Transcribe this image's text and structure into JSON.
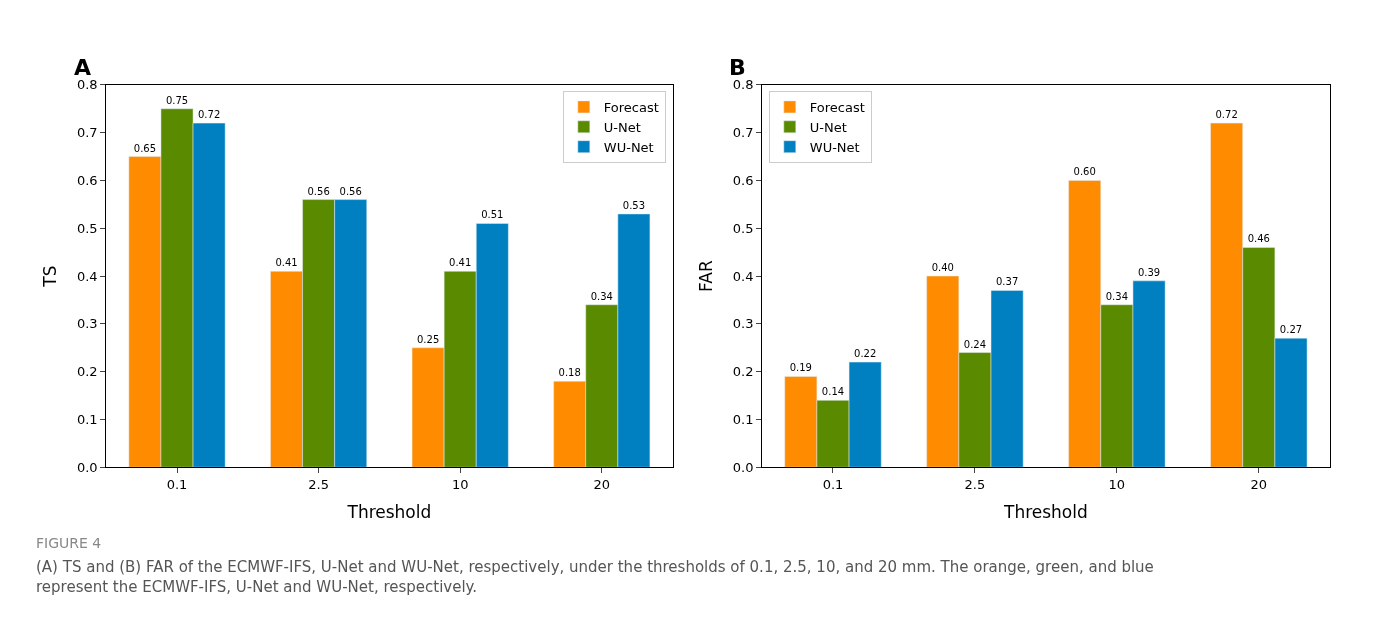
{
  "chart_data": [
    {
      "type": "bar",
      "title": "A",
      "xlabel": "Threshold",
      "ylabel": "TS",
      "categories": [
        "0.1",
        "2.5",
        "10",
        "20"
      ],
      "series": [
        {
          "name": "Forecast",
          "color": "#ff8c00",
          "values": [
            0.65,
            0.41,
            0.25,
            0.18
          ],
          "value_labels": [
            "0.65",
            "0.41",
            "0.25",
            "0.18"
          ]
        },
        {
          "name": "U-Net",
          "color": "#5a8a00",
          "values": [
            0.75,
            0.56,
            0.41,
            0.34
          ],
          "value_labels": [
            "0.75",
            "0.56",
            "0.41",
            "0.34"
          ]
        },
        {
          "name": "WU-Net",
          "color": "#0080c0",
          "values": [
            0.72,
            0.56,
            0.51,
            0.53
          ],
          "value_labels": [
            "0.72",
            "0.56",
            "0.51",
            "0.53"
          ]
        }
      ],
      "ylim": [
        0,
        0.8
      ],
      "yticks": [
        {
          "value": 0,
          "label": "0.0"
        },
        0.1,
        0.2,
        0.3,
        0.4,
        0.5,
        0.6,
        0.7,
        0.8
      ],
      "legend": "top right",
      "annotations": [
        "FIGURE 4",
        "(A) TS and (B) FAR of the ECMWF-IFS, U-Net and WU-Net, respectively, under the thresholds of 0.1, 2.5, 10, and 20 mm. The orange, green, and blue represent the ECMWF-IFS, U-Net and WU-Net, respectively."
      ]
    },
    {
      "type": "bar",
      "title": "B",
      "xlabel": "Threshold",
      "ylabel": "FAR",
      "categories": [
        "0.1",
        "2.5",
        "10",
        "20"
      ],
      "series": [
        {
          "name": "Forecast",
          "color": "#ff8c00",
          "values": [
            0.19,
            0.4,
            0.6,
            0.72
          ],
          "value_labels": [
            "0.19",
            "0.40",
            "0.60",
            "0.72"
          ]
        },
        {
          "name": "U-Net",
          "color": "#5a8a00",
          "values": [
            0.14,
            0.24,
            0.34,
            0.46
          ],
          "value_labels": [
            "0.14",
            "0.24",
            "0.34",
            "0.46"
          ]
        },
        {
          "name": "WU-Net",
          "color": "#0080c0",
          "values": [
            0.22,
            0.37,
            0.39,
            0.27
          ],
          "value_labels": [
            "0.22",
            "0.37",
            "0.39",
            "0.27"
          ]
        }
      ],
      "ylim": [
        0,
        0.8
      ],
      "yticks": [
        {
          "value": 0,
          "label": "0.0"
        },
        0.1,
        0.2,
        0.3,
        0.4,
        0.5,
        0.6,
        0.7,
        0.8
      ],
      "legend": "top left"
    }
  ]
}
